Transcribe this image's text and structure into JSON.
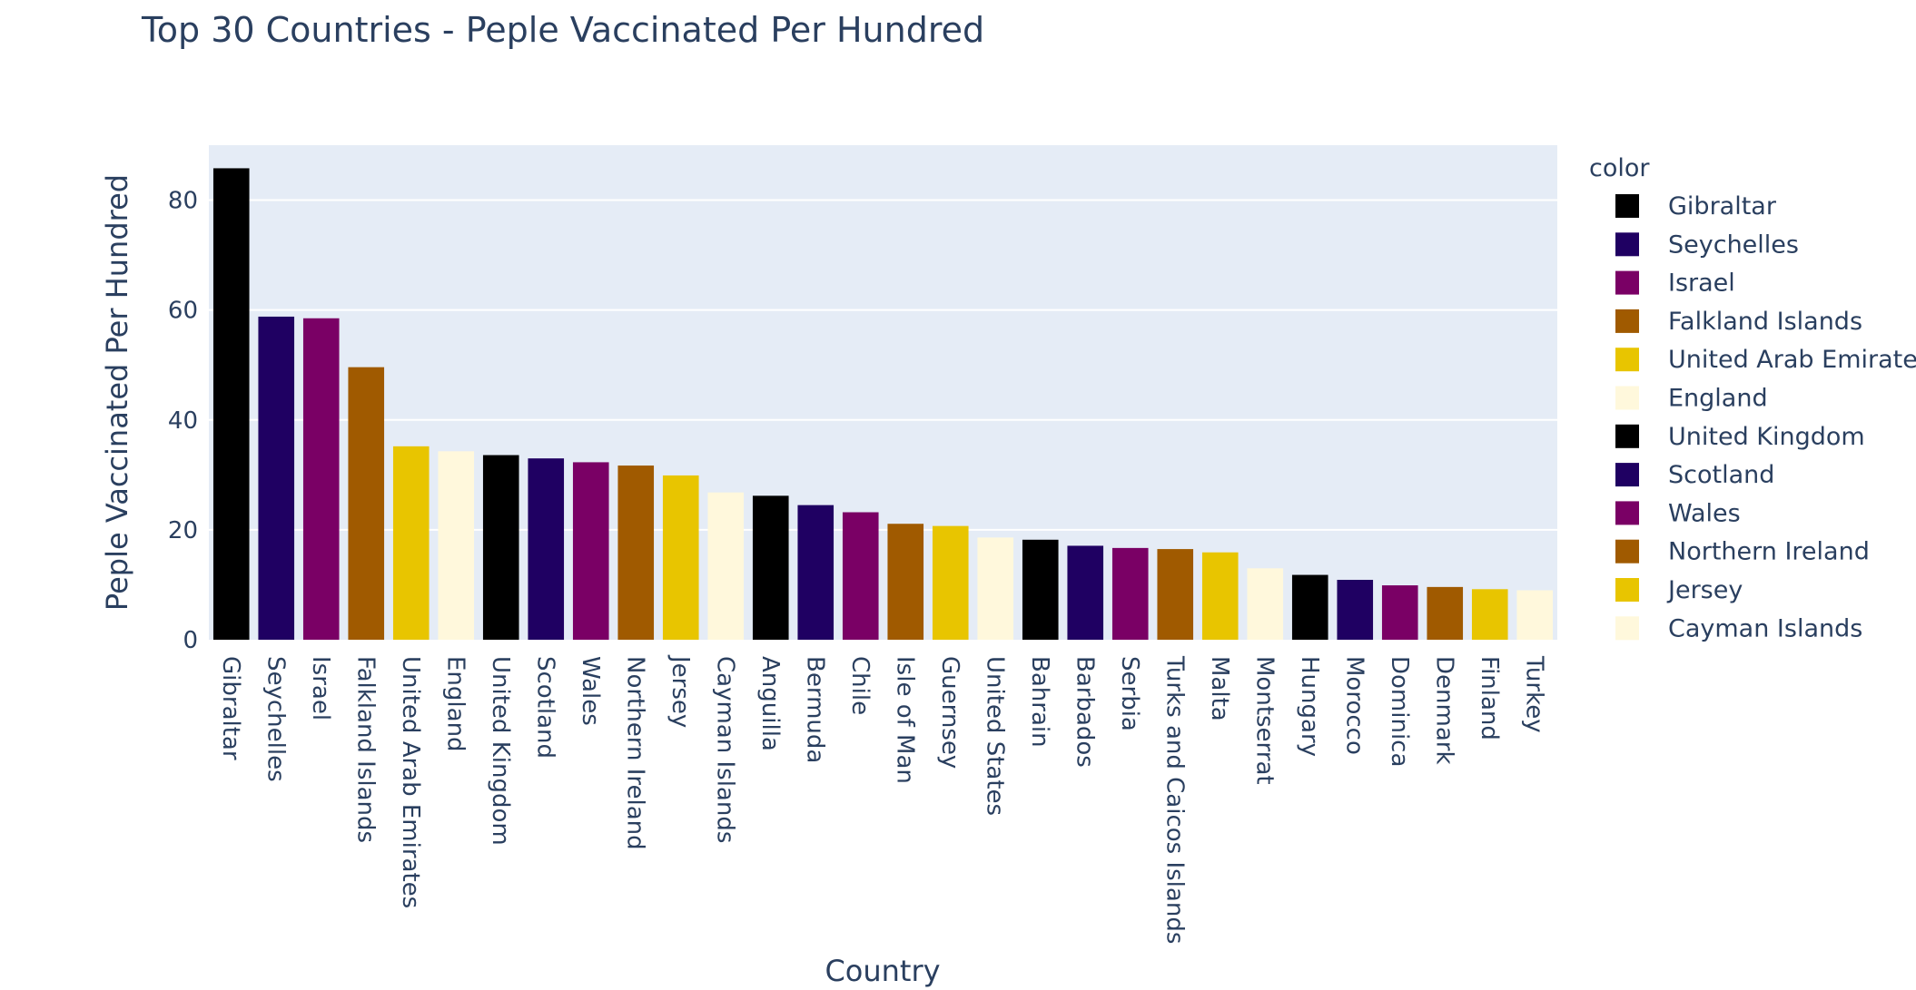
{
  "chart_data": {
    "type": "bar",
    "title": "Top 30 Countries - Peple Vaccinated Per Hundred",
    "xlabel": "Country",
    "ylabel": "Peple Vaccinated Per Hundred",
    "ylim": [
      0,
      90
    ],
    "yticks": [
      0,
      20,
      40,
      60,
      80
    ],
    "grid": true,
    "legend": {
      "title": "color",
      "placement": "right"
    },
    "categories": [
      "Gibraltar",
      "Seychelles",
      "Israel",
      "Falkland Islands",
      "United Arab Emirates",
      "England",
      "United Kingdom",
      "Scotland",
      "Wales",
      "Northern Ireland",
      "Jersey",
      "Cayman Islands",
      "Anguilla",
      "Bermuda",
      "Chile",
      "Isle of Man",
      "Guernsey",
      "United States",
      "Bahrain",
      "Barbados",
      "Serbia",
      "Turks and Caicos Islands",
      "Malta",
      "Montserrat",
      "Hungary",
      "Morocco",
      "Dominica",
      "Denmark",
      "Finland",
      "Turkey"
    ],
    "values": [
      85.8,
      58.8,
      58.5,
      49.6,
      35.2,
      34.3,
      33.6,
      33.0,
      32.3,
      31.7,
      29.9,
      26.8,
      26.2,
      24.5,
      23.2,
      21.1,
      20.7,
      18.6,
      18.2,
      17.1,
      16.7,
      16.5,
      15.9,
      13.0,
      11.8,
      10.9,
      9.9,
      9.6,
      9.2,
      9.0
    ],
    "palette": [
      "#000000",
      "#1f0062",
      "#7a0065",
      "#a05a00",
      "#e8c500",
      "#fff8dc"
    ],
    "legend_entries": [
      "Gibraltar",
      "Seychelles",
      "Israel",
      "Falkland Islands",
      "United Arab Emirates",
      "England",
      "United Kingdom",
      "Scotland",
      "Wales",
      "Northern Ireland",
      "Jersey",
      "Cayman Islands"
    ]
  }
}
